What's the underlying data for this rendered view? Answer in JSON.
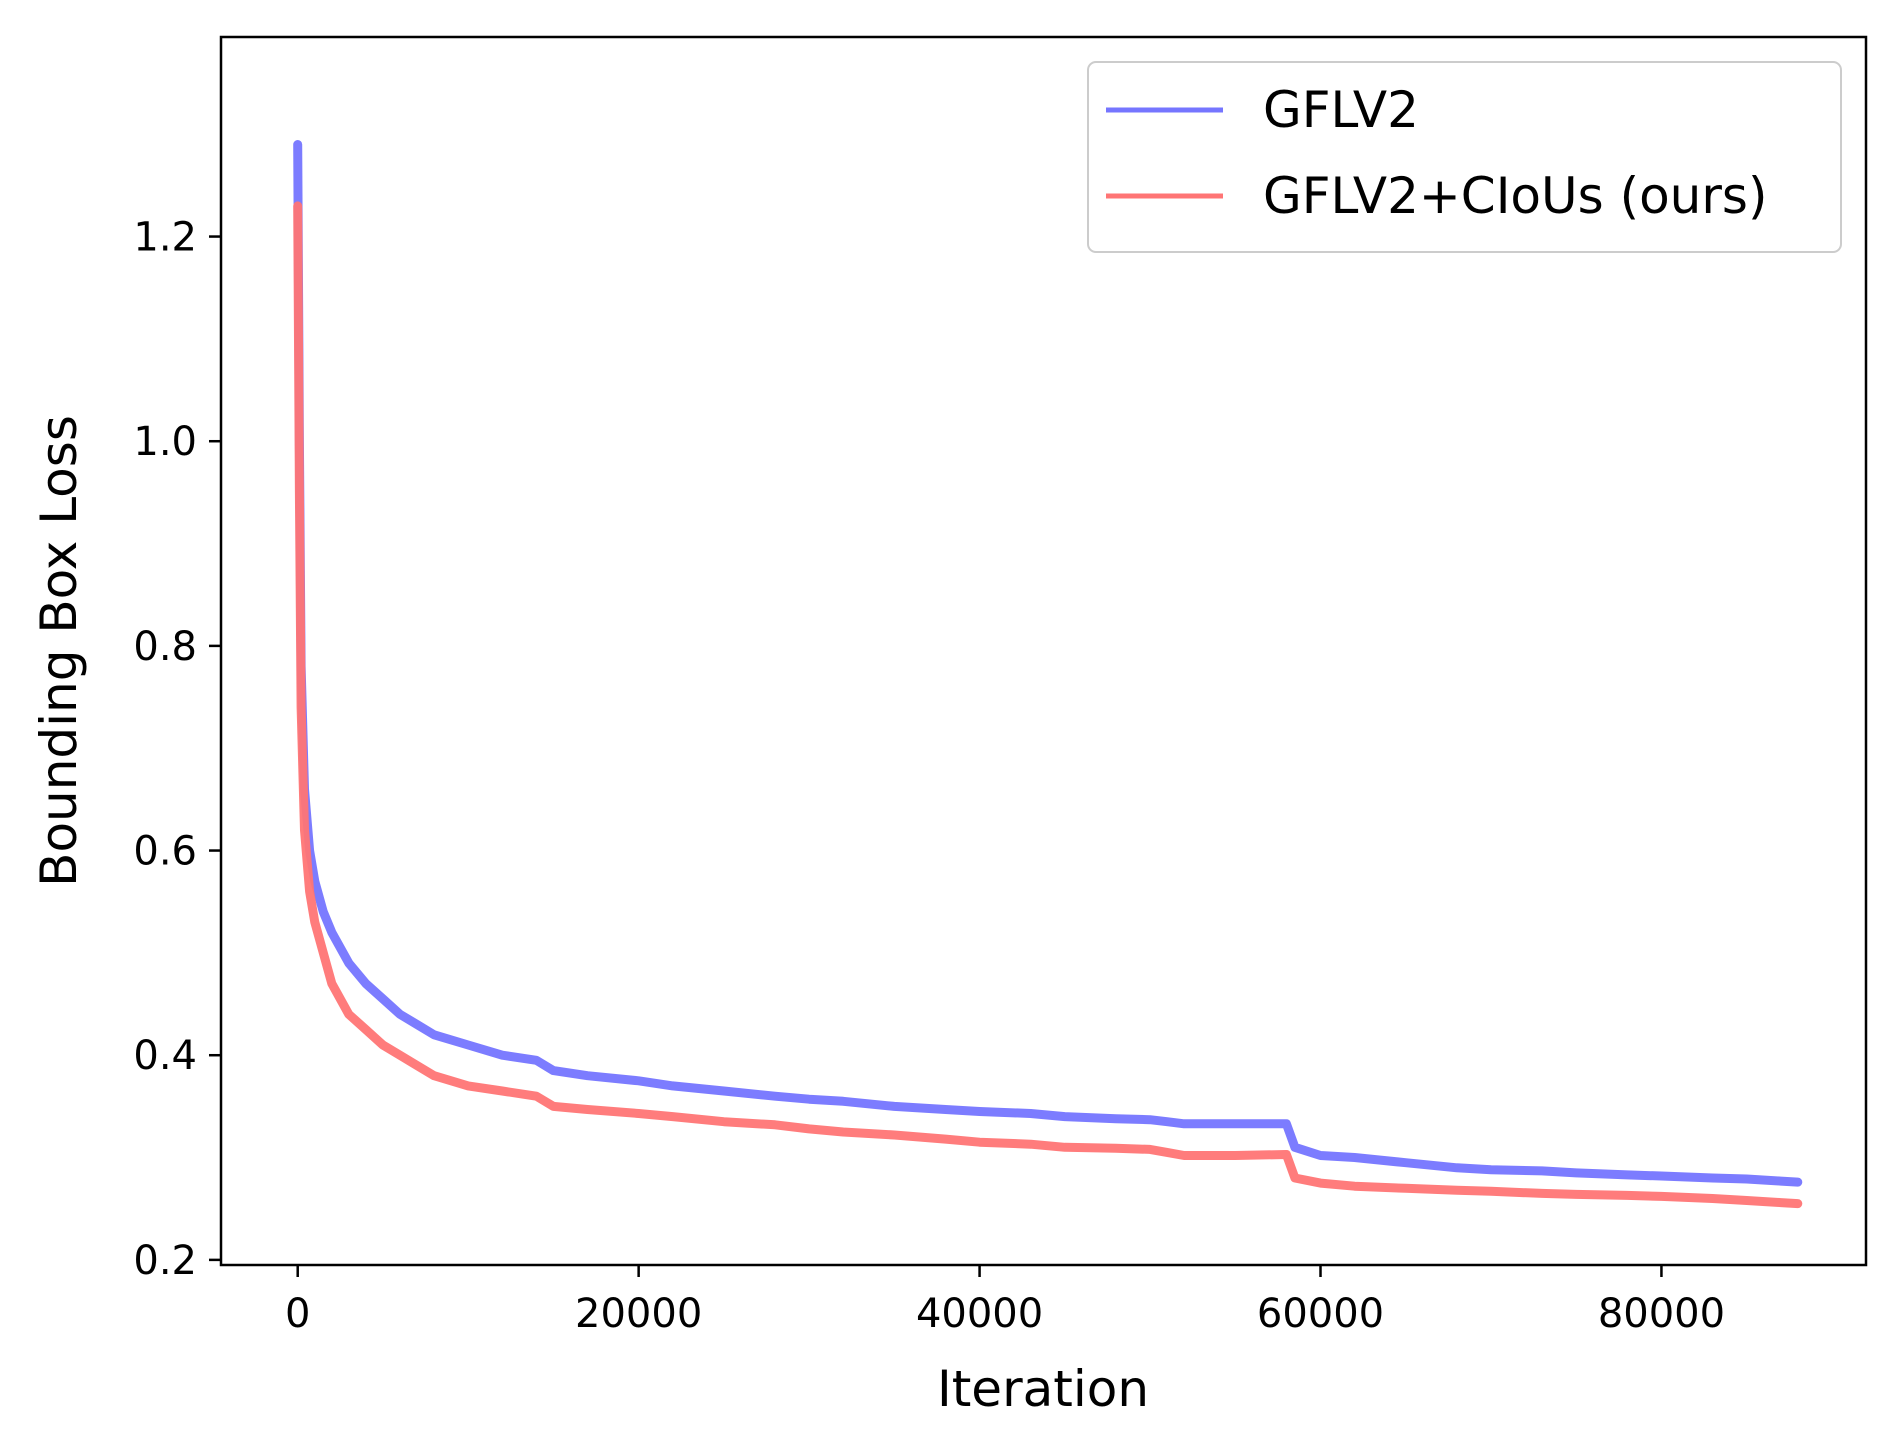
{
  "chart_data": {
    "type": "line",
    "title": "",
    "xlabel": "Iteration",
    "ylabel": "Bounding Box Loss",
    "xlim": [
      -4500,
      92000
    ],
    "ylim": [
      0.195,
      1.395
    ],
    "xticks": [
      0,
      20000,
      40000,
      60000,
      80000
    ],
    "xtick_labels": [
      "0",
      "20000",
      "40000",
      "60000",
      "80000"
    ],
    "yticks": [
      0.2,
      0.4,
      0.6,
      0.8,
      1.0,
      1.2
    ],
    "ytick_labels": [
      "0.2",
      "0.4",
      "0.6",
      "0.8",
      "1.0",
      "1.2"
    ],
    "grid": false,
    "legend_position": "top-right",
    "series": [
      {
        "name": "GFLV2",
        "color": "#7575ff",
        "x": [
          0,
          100,
          200,
          400,
          700,
          1000,
          1500,
          2000,
          3000,
          4000,
          5000,
          6000,
          7000,
          8000,
          10000,
          12000,
          14000,
          15000,
          17000,
          20000,
          22000,
          25000,
          28000,
          30000,
          32000,
          35000,
          38000,
          40000,
          43000,
          45000,
          48000,
          50000,
          51000,
          52000,
          55000,
          58000,
          58500,
          60000,
          62000,
          65000,
          68000,
          70000,
          73000,
          75000,
          78000,
          80000,
          83000,
          85000,
          87000,
          88000
        ],
        "y": [
          1.29,
          1.0,
          0.78,
          0.66,
          0.6,
          0.57,
          0.54,
          0.52,
          0.49,
          0.47,
          0.455,
          0.44,
          0.43,
          0.42,
          0.41,
          0.4,
          0.395,
          0.385,
          0.38,
          0.375,
          0.37,
          0.365,
          0.36,
          0.357,
          0.355,
          0.35,
          0.347,
          0.345,
          0.343,
          0.34,
          0.338,
          0.337,
          0.335,
          0.333,
          0.333,
          0.333,
          0.31,
          0.302,
          0.3,
          0.295,
          0.29,
          0.288,
          0.287,
          0.285,
          0.283,
          0.282,
          0.28,
          0.279,
          0.277,
          0.276
        ]
      },
      {
        "name": "GFLV2+CIoUs (ours)",
        "color": "#ff7575",
        "x": [
          0,
          100,
          200,
          400,
          700,
          1000,
          1500,
          2000,
          3000,
          4000,
          5000,
          6000,
          7000,
          8000,
          10000,
          12000,
          14000,
          15000,
          17000,
          20000,
          22000,
          25000,
          28000,
          30000,
          32000,
          35000,
          38000,
          40000,
          43000,
          45000,
          48000,
          50000,
          51000,
          52000,
          55000,
          58000,
          58500,
          60000,
          62000,
          65000,
          68000,
          70000,
          73000,
          75000,
          78000,
          80000,
          83000,
          85000,
          87000,
          88000
        ],
        "y": [
          1.23,
          0.95,
          0.74,
          0.62,
          0.56,
          0.53,
          0.5,
          0.47,
          0.44,
          0.425,
          0.41,
          0.4,
          0.39,
          0.38,
          0.37,
          0.365,
          0.36,
          0.35,
          0.347,
          0.343,
          0.34,
          0.335,
          0.332,
          0.328,
          0.325,
          0.322,
          0.318,
          0.315,
          0.313,
          0.31,
          0.309,
          0.308,
          0.305,
          0.302,
          0.302,
          0.303,
          0.28,
          0.275,
          0.272,
          0.27,
          0.268,
          0.267,
          0.265,
          0.264,
          0.263,
          0.262,
          0.26,
          0.258,
          0.256,
          0.255
        ]
      }
    ]
  }
}
